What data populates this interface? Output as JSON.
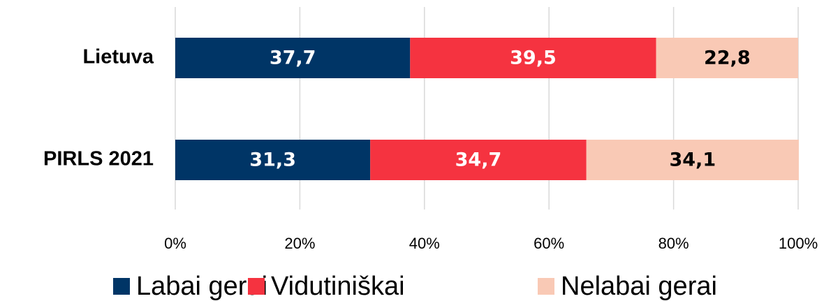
{
  "chart_data": {
    "type": "stacked-barh",
    "categories": [
      "Lietuva",
      "PIRLS 2021"
    ],
    "series": [
      {
        "name": "Labai gerai",
        "color": "#003566",
        "label_color": "#ffffff",
        "values": [
          37.7,
          31.3
        ],
        "value_labels": [
          "37,7",
          "31,3"
        ]
      },
      {
        "name": "Vidutiniškai",
        "color": "#f53340",
        "label_color": "#ffffff",
        "values": [
          39.5,
          34.7
        ],
        "value_labels": [
          "39,5",
          "34,7"
        ]
      },
      {
        "name": "Nelabai gerai",
        "color": "#f9c9b5",
        "label_color": "#000000",
        "values": [
          22.8,
          34.1
        ],
        "value_labels": [
          "22,8",
          "34,1"
        ]
      }
    ],
    "xlim": [
      0,
      100
    ],
    "xticks": [
      {
        "value": 0,
        "label": "0%"
      },
      {
        "value": 20,
        "label": "20%"
      },
      {
        "value": 40,
        "label": "40%"
      },
      {
        "value": 60,
        "label": "60%"
      },
      {
        "value": 80,
        "label": "80%"
      },
      {
        "value": 100,
        "label": "100%"
      }
    ],
    "grid": true,
    "legend": "bottom"
  }
}
